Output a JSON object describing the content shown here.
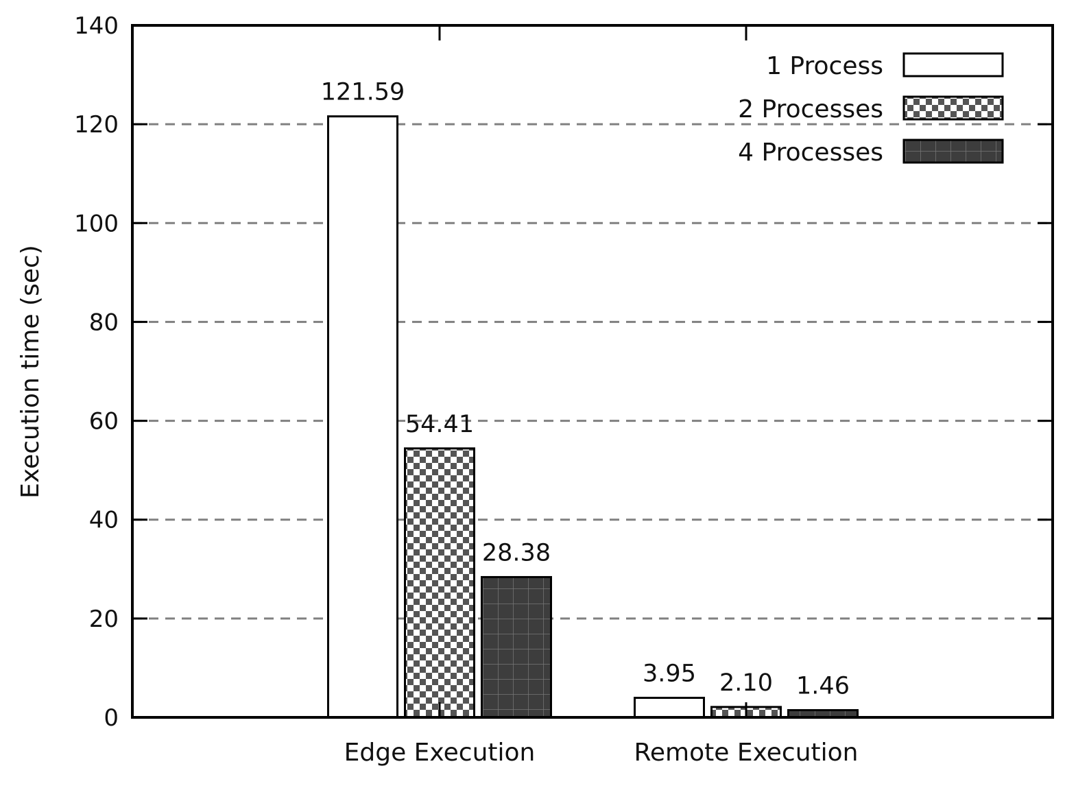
{
  "chart_data": {
    "type": "bar",
    "title": "",
    "xlabel": "",
    "ylabel": "Execution time (sec)",
    "categories": [
      "Edge Execution",
      "Remote Execution"
    ],
    "ylim": [
      0,
      140
    ],
    "yticks": [
      0,
      20,
      40,
      60,
      80,
      100,
      120,
      140
    ],
    "grid": "horizontal dashed",
    "legend_position": "top-right",
    "series": [
      {
        "name": "1 Process",
        "values": [
          121.59,
          3.95
        ],
        "labels": [
          "121.59",
          "3.95"
        ],
        "pattern": "empty",
        "color": "#ffffff"
      },
      {
        "name": "2 Processes",
        "values": [
          54.41,
          2.1
        ],
        "labels": [
          "54.41",
          "2.10"
        ],
        "pattern": "checkerboard",
        "color": "#555555"
      },
      {
        "name": "4 Processes",
        "values": [
          28.38,
          1.46
        ],
        "labels": [
          "28.38",
          "1.46"
        ],
        "pattern": "grid",
        "color": "#3d3d3d"
      }
    ]
  }
}
